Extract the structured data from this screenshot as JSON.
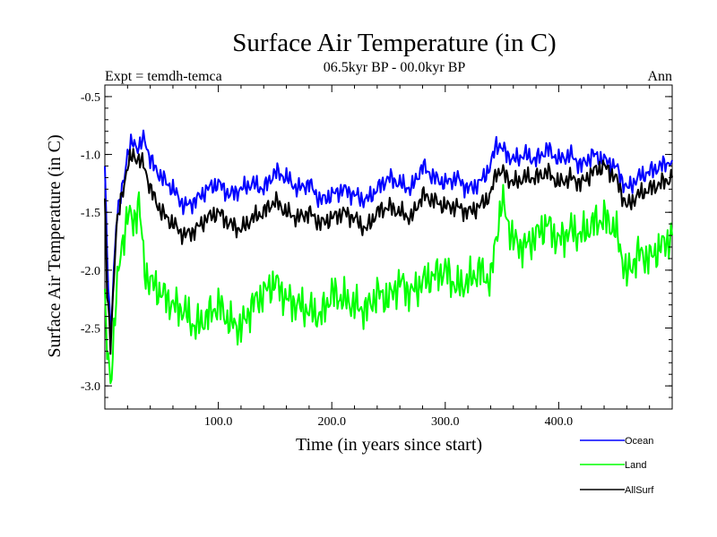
{
  "chart_data": {
    "type": "line",
    "title": "Surface Air Temperature (in C)",
    "subtitle": "06.5kyr BP - 00.0kyr BP",
    "left_label": "Expt = temdh-temca",
    "right_label": "Ann",
    "xlabel": "Time (in years since start)",
    "ylabel": "Surface Air Temperature (in C)",
    "xlim": [
      0,
      500
    ],
    "ylim": [
      -3.2,
      -0.4
    ],
    "xticks": [
      100,
      200,
      300,
      400
    ],
    "xtick_labels": [
      "100.0",
      "200.0",
      "300.0",
      "400.0"
    ],
    "yticks": [
      -0.5,
      -1.0,
      -1.5,
      -2.0,
      -2.5,
      -3.0
    ],
    "ytick_labels": [
      "-0.5",
      "-1.0",
      "-1.5",
      "-2.0",
      "-2.5",
      "-3.0"
    ],
    "legend_position": "below-right",
    "x": [
      0,
      2,
      5,
      10,
      15,
      20,
      25,
      30,
      35,
      40,
      50,
      60,
      70,
      80,
      90,
      100,
      110,
      120,
      130,
      140,
      150,
      160,
      170,
      180,
      190,
      200,
      210,
      220,
      230,
      240,
      250,
      260,
      270,
      280,
      290,
      300,
      310,
      320,
      330,
      340,
      345,
      350,
      360,
      370,
      380,
      390,
      400,
      410,
      420,
      430,
      440,
      450,
      460,
      470,
      480,
      490,
      500
    ],
    "series": [
      {
        "name": "Ocean",
        "color": "#0000ff",
        "values": [
          -1.1,
          -1.9,
          -2.55,
          -1.6,
          -1.3,
          -1.0,
          -0.88,
          -0.95,
          -0.85,
          -1.05,
          -1.2,
          -1.3,
          -1.45,
          -1.4,
          -1.3,
          -1.25,
          -1.35,
          -1.3,
          -1.25,
          -1.3,
          -1.15,
          -1.2,
          -1.3,
          -1.25,
          -1.4,
          -1.35,
          -1.3,
          -1.35,
          -1.4,
          -1.3,
          -1.2,
          -1.25,
          -1.3,
          -1.1,
          -1.2,
          -1.25,
          -1.2,
          -1.3,
          -1.25,
          -1.1,
          -0.9,
          -0.95,
          -1.05,
          -1.0,
          -1.05,
          -0.95,
          -1.05,
          -1.0,
          -1.1,
          -1.0,
          -1.05,
          -1.1,
          -1.3,
          -1.2,
          -1.15,
          -1.1,
          -1.05
        ]
      },
      {
        "name": "Land",
        "color": "#00ff00",
        "values": [
          -2.3,
          -2.7,
          -3.0,
          -2.2,
          -1.8,
          -1.5,
          -1.6,
          -1.4,
          -2.0,
          -2.1,
          -2.2,
          -2.3,
          -2.35,
          -2.5,
          -2.4,
          -2.3,
          -2.45,
          -2.5,
          -2.3,
          -2.2,
          -2.1,
          -2.25,
          -2.3,
          -2.35,
          -2.4,
          -2.2,
          -2.25,
          -2.3,
          -2.35,
          -2.2,
          -2.25,
          -2.1,
          -2.2,
          -2.1,
          -2.05,
          -2.0,
          -2.15,
          -2.1,
          -2.0,
          -2.1,
          -1.7,
          -1.4,
          -1.75,
          -1.8,
          -1.7,
          -1.6,
          -1.75,
          -1.65,
          -1.7,
          -1.6,
          -1.55,
          -1.65,
          -2.05,
          -1.85,
          -1.9,
          -1.8,
          -1.7
        ]
      },
      {
        "name": "AllSurf",
        "color": "#000000",
        "values": [
          -1.4,
          -2.2,
          -2.65,
          -1.65,
          -1.35,
          -1.1,
          -1.0,
          -1.05,
          -1.1,
          -1.3,
          -1.5,
          -1.6,
          -1.7,
          -1.65,
          -1.55,
          -1.5,
          -1.6,
          -1.65,
          -1.55,
          -1.5,
          -1.4,
          -1.5,
          -1.55,
          -1.5,
          -1.6,
          -1.55,
          -1.5,
          -1.55,
          -1.65,
          -1.5,
          -1.45,
          -1.5,
          -1.55,
          -1.35,
          -1.4,
          -1.45,
          -1.45,
          -1.5,
          -1.45,
          -1.35,
          -1.15,
          -1.15,
          -1.25,
          -1.2,
          -1.2,
          -1.15,
          -1.25,
          -1.2,
          -1.25,
          -1.15,
          -1.1,
          -1.2,
          -1.45,
          -1.35,
          -1.3,
          -1.25,
          -1.2
        ]
      }
    ]
  }
}
